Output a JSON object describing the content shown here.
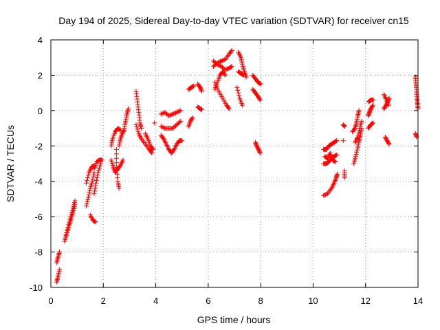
{
  "chart_data": {
    "type": "scatter",
    "title": "Day 194 of 2025, Sidereal Day-to-day VTEC variation (SDTVAR) for receiver cn15",
    "xlabel": "GPS time / hours",
    "ylabel": "SDTVAR / TECUs",
    "xlim": [
      0,
      14
    ],
    "ylim": [
      -10,
      4
    ],
    "xticks": [
      0,
      2,
      4,
      6,
      8,
      10,
      12,
      14
    ],
    "yticks": [
      -10,
      -8,
      -6,
      -4,
      -2,
      0,
      2,
      4
    ],
    "grid": true,
    "marker": "+",
    "color": "#ff0000",
    "tracks": [
      [
        [
          0.22,
          -9.7
        ],
        [
          0.27,
          -9.4
        ],
        [
          0.33,
          -9.0
        ]
      ],
      [
        [
          0.22,
          -8.6
        ],
        [
          0.27,
          -8.3
        ],
        [
          0.33,
          -8.0
        ]
      ],
      [
        [
          0.52,
          -7.4
        ],
        [
          0.6,
          -7.0
        ],
        [
          0.68,
          -6.6
        ],
        [
          0.76,
          -6.2
        ],
        [
          0.84,
          -5.8
        ],
        [
          0.92,
          -5.3
        ]
      ],
      [
        [
          0.55,
          -7.2
        ],
        [
          0.65,
          -6.6
        ],
        [
          0.75,
          -6.0
        ],
        [
          0.85,
          -5.5
        ],
        [
          0.92,
          -5.1
        ]
      ],
      [
        [
          1.35,
          -5.4
        ],
        [
          1.43,
          -4.9
        ],
        [
          1.5,
          -4.4
        ],
        [
          1.58,
          -4.0
        ],
        [
          1.65,
          -3.5
        ]
      ],
      [
        [
          1.35,
          -4.1
        ],
        [
          1.45,
          -3.5
        ],
        [
          1.55,
          -3.2
        ],
        [
          1.65,
          -3.1
        ]
      ],
      [
        [
          1.5,
          -5.9
        ],
        [
          1.6,
          -6.2
        ],
        [
          1.7,
          -6.3
        ]
      ],
      [
        [
          1.65,
          -4.7
        ],
        [
          1.72,
          -4.1
        ],
        [
          1.8,
          -3.5
        ],
        [
          1.9,
          -3.0
        ]
      ],
      [
        [
          1.65,
          -3.3
        ],
        [
          1.75,
          -2.9
        ],
        [
          1.85,
          -2.8
        ],
        [
          1.95,
          -2.8
        ]
      ],
      [
        [
          2.3,
          -2.0
        ],
        [
          2.35,
          -1.6
        ],
        [
          2.45,
          -1.2
        ],
        [
          2.55,
          -1.0
        ],
        [
          2.65,
          -1.1
        ]
      ],
      [
        [
          2.3,
          -2.8
        ],
        [
          2.38,
          -3.2
        ],
        [
          2.45,
          -3.5
        ],
        [
          2.55,
          -3.3
        ],
        [
          2.65,
          -3.1
        ],
        [
          2.75,
          -2.8
        ]
      ],
      [
        [
          2.5,
          -2.2
        ],
        [
          2.5,
          -3.2
        ],
        [
          2.55,
          -4.0
        ],
        [
          2.6,
          -4.4
        ]
      ],
      [
        [
          2.6,
          -2.0
        ],
        [
          2.65,
          -1.6
        ],
        [
          2.72,
          -1.3
        ],
        [
          2.8,
          -1.1
        ]
      ],
      [
        [
          2.8,
          -1.0
        ],
        [
          2.85,
          -0.6
        ],
        [
          2.9,
          -0.2
        ],
        [
          2.95,
          0.1
        ]
      ],
      [
        [
          3.25,
          1.1
        ],
        [
          3.3,
          0.5
        ],
        [
          3.35,
          -0.1
        ],
        [
          3.4,
          -0.7
        ],
        [
          3.45,
          -1.0
        ]
      ],
      [
        [
          3.25,
          -0.8
        ],
        [
          3.35,
          -1.3
        ],
        [
          3.45,
          -1.6
        ],
        [
          3.6,
          -1.9
        ],
        [
          3.75,
          -2.2
        ],
        [
          3.85,
          -2.4
        ]
      ],
      [
        [
          3.6,
          -1.3
        ],
        [
          3.7,
          -1.6
        ],
        [
          3.8,
          -2.0
        ],
        [
          3.9,
          -2.2
        ]
      ],
      [
        [
          3.95,
          -0.7
        ]
      ],
      [
        [
          4.2,
          -0.2
        ],
        [
          4.35,
          -0.1
        ],
        [
          4.5,
          -0.3
        ],
        [
          4.65,
          -0.2
        ],
        [
          4.8,
          -0.1
        ],
        [
          4.95,
          0.0
        ]
      ],
      [
        [
          4.2,
          -0.9
        ],
        [
          4.35,
          -1.0
        ],
        [
          4.5,
          -1.0
        ],
        [
          4.65,
          -1.0
        ],
        [
          4.8,
          -0.8
        ],
        [
          4.95,
          -0.6
        ]
      ],
      [
        [
          4.2,
          -1.4
        ],
        [
          4.3,
          -1.6
        ],
        [
          4.4,
          -1.9
        ],
        [
          4.5,
          -2.2
        ],
        [
          4.6,
          -2.4
        ],
        [
          4.7,
          -2.2
        ],
        [
          4.8,
          -1.9
        ],
        [
          4.9,
          -1.7
        ],
        [
          5.0,
          -1.7
        ]
      ],
      [
        [
          5.25,
          -0.9
        ],
        [
          5.32,
          -0.6
        ],
        [
          5.4,
          -0.4
        ]
      ],
      [
        [
          5.25,
          1.2
        ],
        [
          5.35,
          1.3
        ],
        [
          5.45,
          1.4
        ]
      ],
      [
        [
          5.6,
          1.5
        ],
        [
          5.7,
          1.3
        ],
        [
          5.75,
          1.1
        ]
      ],
      [
        [
          5.6,
          0.2
        ],
        [
          5.7,
          0.1
        ],
        [
          5.75,
          0.05
        ]
      ],
      [
        [
          6.2,
          2.5
        ],
        [
          6.35,
          2.7
        ],
        [
          6.5,
          2.8
        ],
        [
          6.65,
          2.9
        ],
        [
          6.8,
          3.2
        ],
        [
          6.9,
          3.4
        ]
      ],
      [
        [
          6.2,
          2.8
        ],
        [
          6.35,
          2.6
        ],
        [
          6.5,
          2.5
        ],
        [
          6.65,
          2.3
        ],
        [
          6.8,
          2.4
        ],
        [
          6.9,
          2.5
        ]
      ],
      [
        [
          6.25,
          1.6
        ],
        [
          6.4,
          1.1
        ],
        [
          6.55,
          0.7
        ],
        [
          6.7,
          0.3
        ],
        [
          6.8,
          0.1
        ]
      ],
      [
        [
          6.25,
          1.2
        ],
        [
          6.35,
          1.6
        ],
        [
          6.45,
          2.0
        ],
        [
          6.55,
          2.2
        ],
        [
          6.65,
          2.0
        ]
      ],
      [
        [
          7.1,
          1.3
        ],
        [
          7.2,
          0.7
        ],
        [
          7.3,
          0.3
        ]
      ],
      [
        [
          7.15,
          3.3
        ],
        [
          7.25,
          3.0
        ],
        [
          7.3,
          2.6
        ],
        [
          7.38,
          2.2
        ],
        [
          7.45,
          1.9
        ]
      ],
      [
        [
          7.15,
          2.2
        ],
        [
          7.25,
          2.1
        ],
        [
          7.35,
          2.0
        ]
      ],
      [
        [
          7.7,
          2.0
        ],
        [
          7.8,
          1.8
        ],
        [
          7.9,
          1.6
        ],
        [
          8.0,
          1.5
        ]
      ],
      [
        [
          7.7,
          1.2
        ],
        [
          7.8,
          1.0
        ],
        [
          7.9,
          0.8
        ],
        [
          7.98,
          0.6
        ]
      ],
      [
        [
          7.8,
          -1.8
        ],
        [
          7.85,
          -2.0
        ],
        [
          7.92,
          -2.2
        ],
        [
          7.98,
          -2.4
        ]
      ],
      [
        [
          10.4,
          -4.8
        ],
        [
          10.55,
          -4.7
        ],
        [
          10.7,
          -4.4
        ],
        [
          10.8,
          -4.1
        ],
        [
          10.88,
          -3.8
        ],
        [
          10.92,
          -3.6
        ]
      ],
      [
        [
          10.4,
          -2.2
        ],
        [
          10.5,
          -2.2
        ],
        [
          10.6,
          -2.0
        ],
        [
          10.7,
          -1.9
        ],
        [
          10.8,
          -1.8
        ],
        [
          10.9,
          -1.7
        ]
      ],
      [
        [
          10.4,
          -3.0
        ],
        [
          10.5,
          -3.0
        ],
        [
          10.6,
          -2.9
        ],
        [
          10.7,
          -2.7
        ],
        [
          10.8,
          -2.6
        ],
        [
          10.9,
          -2.5
        ]
      ],
      [
        [
          10.45,
          -2.6
        ],
        [
          10.55,
          -2.7
        ],
        [
          10.65,
          -2.4
        ],
        [
          10.75,
          -2.8
        ],
        [
          10.85,
          -2.9
        ]
      ],
      [
        [
          11.15,
          -0.8
        ],
        [
          11.2,
          -0.9
        ]
      ],
      [
        [
          11.2,
          -3.4
        ],
        [
          11.2,
          -3.8
        ]
      ],
      [
        [
          11.15,
          -1.7
        ]
      ],
      [
        [
          11.5,
          -1.2
        ],
        [
          11.6,
          -1.0
        ],
        [
          11.65,
          -0.7
        ],
        [
          11.7,
          -0.3
        ],
        [
          11.75,
          0.0
        ]
      ],
      [
        [
          11.55,
          -3.0
        ],
        [
          11.62,
          -2.6
        ],
        [
          11.7,
          -2.1
        ],
        [
          11.75,
          -1.7
        ],
        [
          11.8,
          -1.4
        ],
        [
          11.85,
          -1.0
        ]
      ],
      [
        [
          11.6,
          -1.8
        ],
        [
          11.7,
          -1.5
        ],
        [
          11.78,
          -1.0
        ],
        [
          11.85,
          -0.6
        ]
      ],
      [
        [
          12.1,
          -0.3
        ],
        [
          12.15,
          -0.1
        ],
        [
          12.2,
          0.1
        ],
        [
          12.28,
          0.3
        ]
      ],
      [
        [
          12.1,
          -1.0
        ],
        [
          12.2,
          -0.8
        ],
        [
          12.28,
          -0.7
        ]
      ],
      [
        [
          12.12,
          0.5
        ],
        [
          12.2,
          0.6
        ],
        [
          12.3,
          0.6
        ]
      ],
      [
        [
          12.7,
          0.9
        ],
        [
          12.8,
          0.6
        ],
        [
          12.88,
          0.3
        ]
      ],
      [
        [
          12.7,
          0.1
        ],
        [
          12.78,
          0.3
        ],
        [
          12.85,
          0.5
        ],
        [
          12.9,
          0.7
        ]
      ],
      [
        [
          12.75,
          -1.5
        ],
        [
          12.82,
          -1.7
        ],
        [
          12.9,
          -1.9
        ]
      ],
      [
        [
          13.9,
          1.9
        ],
        [
          13.92,
          1.5
        ],
        [
          13.94,
          1.1
        ],
        [
          13.96,
          0.7
        ],
        [
          13.98,
          0.4
        ],
        [
          14.0,
          0.1
        ]
      ],
      [
        [
          13.9,
          -1.3
        ],
        [
          13.95,
          -1.5
        ]
      ]
    ]
  }
}
